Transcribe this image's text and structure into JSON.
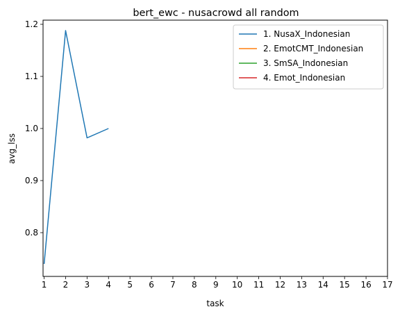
{
  "chart_data": {
    "type": "line",
    "title": "bert_ewc - nusacrowd all random",
    "xlabel": "task",
    "ylabel": "avg_lss",
    "xlim": [
      0.95,
      17.0
    ],
    "ylim": [
      0.716,
      1.208
    ],
    "xticks": [
      1,
      2,
      3,
      4,
      5,
      6,
      7,
      8,
      9,
      10,
      11,
      12,
      13,
      14,
      15,
      16,
      17
    ],
    "yticks": [
      0.8,
      0.9,
      1.0,
      1.1,
      1.2
    ],
    "ytick_labels": [
      "0.8",
      "0.9",
      "1.0",
      "1.1",
      "1.2"
    ],
    "grid": false,
    "legend_position": "top-right",
    "series": [
      {
        "name": "1. NusaX_Indonesian",
        "color": "#1f77b4",
        "x": [
          1,
          2,
          3,
          4
        ],
        "y": [
          0.74,
          1.188,
          0.982,
          1.0
        ]
      },
      {
        "name": "2. EmotCMT_Indonesian",
        "color": "#ff7f0e",
        "x": [],
        "y": []
      },
      {
        "name": "3. SmSA_Indonesian",
        "color": "#2ca02c",
        "x": [],
        "y": []
      },
      {
        "name": "4. Emot_Indonesian",
        "color": "#d62728",
        "x": [],
        "y": []
      }
    ]
  }
}
